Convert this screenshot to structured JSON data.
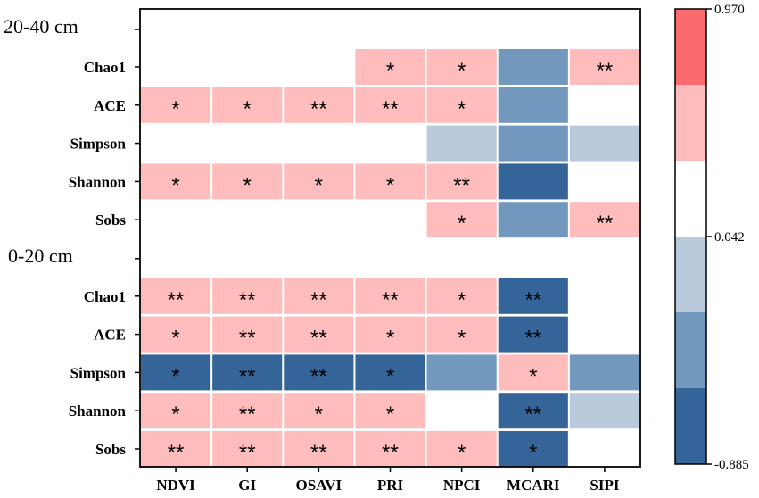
{
  "chart_data": {
    "type": "heatmap",
    "columns": [
      "NDVI",
      "GI",
      "OSAVI",
      "PRI",
      "NPCI",
      "MCARI",
      "SIPI"
    ],
    "sections": [
      {
        "label": "20-40 cm",
        "rows": [
          {
            "name": "Chao1",
            "levels": [
              3,
              3,
              3,
              4,
              4,
              1,
              4
            ],
            "marks": [
              "",
              "",
              "",
              "*",
              "*",
              "",
              "**"
            ]
          },
          {
            "name": "ACE",
            "levels": [
              4,
              4,
              4,
              4,
              4,
              1,
              3
            ],
            "marks": [
              "*",
              "*",
              "**",
              "**",
              "*",
              "",
              ""
            ]
          },
          {
            "name": "Simpson",
            "levels": [
              3,
              3,
              3,
              3,
              2,
              1,
              2
            ],
            "marks": [
              "",
              "",
              "",
              "",
              "",
              "",
              ""
            ]
          },
          {
            "name": "Shannon",
            "levels": [
              4,
              4,
              4,
              4,
              4,
              0,
              3
            ],
            "marks": [
              "*",
              "*",
              "*",
              "*",
              "**",
              "",
              ""
            ]
          },
          {
            "name": "Sobs",
            "levels": [
              3,
              3,
              3,
              3,
              4,
              1,
              4
            ],
            "marks": [
              "",
              "",
              "",
              "",
              "*",
              "",
              "**"
            ]
          }
        ]
      },
      {
        "label": "0-20 cm",
        "rows": [
          {
            "name": "Chao1",
            "levels": [
              4,
              4,
              4,
              4,
              4,
              0,
              3
            ],
            "marks": [
              "**",
              "**",
              "**",
              "**",
              "*",
              "**",
              ""
            ]
          },
          {
            "name": "ACE",
            "levels": [
              4,
              4,
              4,
              4,
              4,
              0,
              3
            ],
            "marks": [
              "*",
              "**",
              "**",
              "*",
              "*",
              "**",
              ""
            ]
          },
          {
            "name": "Simpson",
            "levels": [
              0,
              0,
              0,
              0,
              1,
              4,
              1
            ],
            "marks": [
              "*",
              "**",
              "**",
              "*",
              "",
              "*",
              ""
            ]
          },
          {
            "name": "Shannon",
            "levels": [
              4,
              4,
              4,
              4,
              3,
              0,
              2
            ],
            "marks": [
              "*",
              "**",
              "*",
              "*",
              "",
              "**",
              ""
            ]
          },
          {
            "name": "Sobs",
            "levels": [
              4,
              4,
              4,
              4,
              4,
              0,
              3
            ],
            "marks": [
              "**",
              "**",
              "**",
              "**",
              "*",
              "*",
              ""
            ]
          }
        ]
      }
    ],
    "colorbar": {
      "min": -0.885,
      "max": 0.97,
      "tick_labels": [
        "0.970",
        "0.042",
        "-0.885"
      ],
      "colors": [
        "#356598",
        "#7398bd",
        "#b9cadc",
        "#ffffff",
        "#ffbcbd",
        "#fb6a6c"
      ]
    }
  }
}
